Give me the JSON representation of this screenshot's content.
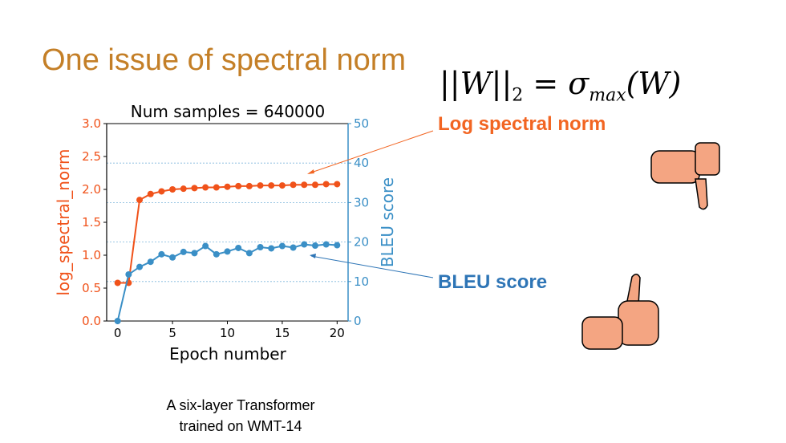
{
  "slide": {
    "title": "One issue of spectral norm",
    "formula": "||W||₂ = σmax(W)",
    "formula_parts": {
      "lhs": "||W||",
      "sub2": "2",
      "eq": " = σ",
      "sub_max": "max",
      "rhs": "(W)"
    },
    "label_log": "Log spectral norm",
    "label_bleu": "BLEU score",
    "caption_line1": "A six-layer Transformer",
    "caption_line2": "trained on WMT-14",
    "colors": {
      "title": "#c47f27",
      "orange": "#f26522",
      "blue": "#2e75b6",
      "series_orange": "#f0521a",
      "series_blue": "#3a8fc6"
    }
  },
  "chart_data": {
    "type": "line",
    "title": "Num samples = 640000",
    "xlabel": "Epoch number",
    "ylabel": "log_spectral_norm",
    "y2label": "BLEU score",
    "xlim": [
      -1,
      21
    ],
    "ylim": [
      0,
      3.0
    ],
    "y2lim": [
      0,
      50
    ],
    "xticks": [
      0,
      5,
      10,
      15,
      20
    ],
    "yticks": [
      "0.0",
      "0.5",
      "1.0",
      "1.5",
      "2.0",
      "2.5",
      "3.0"
    ],
    "y2ticks": [
      0,
      10,
      20,
      30,
      40,
      50
    ],
    "grid": "dotted horizontal at BLEU 10,20,30,40",
    "x": [
      0,
      1,
      2,
      3,
      4,
      5,
      6,
      7,
      8,
      9,
      10,
      11,
      12,
      13,
      14,
      15,
      16,
      17,
      18,
      19,
      20
    ],
    "series": [
      {
        "name": "log_spectral_norm",
        "axis": "left",
        "values": [
          0.58,
          0.58,
          1.84,
          1.93,
          1.97,
          2.0,
          2.01,
          2.02,
          2.03,
          2.03,
          2.04,
          2.05,
          2.05,
          2.06,
          2.06,
          2.06,
          2.07,
          2.07,
          2.07,
          2.08,
          2.08
        ]
      },
      {
        "name": "BLEU score",
        "axis": "right",
        "values": [
          0,
          11.8,
          13.7,
          15.0,
          16.9,
          16.1,
          17.5,
          17.2,
          19.0,
          16.9,
          17.6,
          18.5,
          17.2,
          18.7,
          18.4,
          19.0,
          18.6,
          19.4,
          19.1,
          19.4,
          19.2
        ]
      }
    ]
  }
}
